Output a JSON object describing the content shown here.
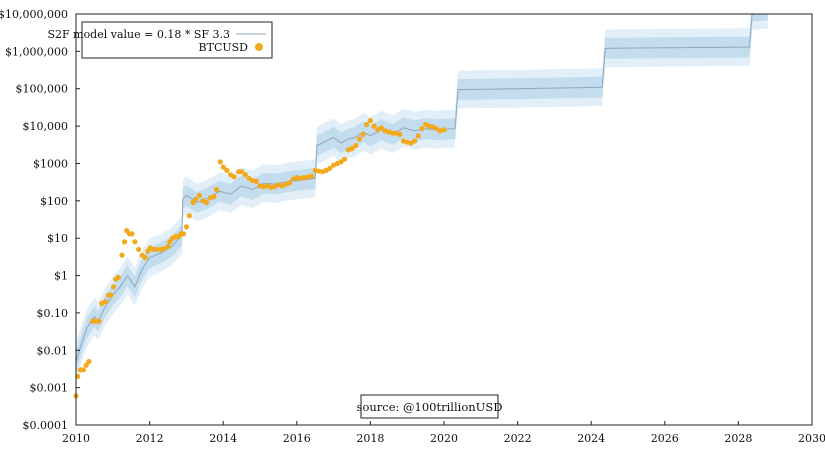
{
  "chart_data": {
    "type": "scatter",
    "y_scale": "log",
    "xlim": [
      2010,
      2030
    ],
    "ylim": [
      0.0001,
      10000000
    ],
    "x_ticks": [
      "2010",
      "2012",
      "2014",
      "2016",
      "2018",
      "2020",
      "2022",
      "2024",
      "2026",
      "2028",
      "2030"
    ],
    "y_ticks": [
      {
        "v": 10000000,
        "label": "$10,000,000"
      },
      {
        "v": 1000000,
        "label": "$1,000,000"
      },
      {
        "v": 100000,
        "label": "$100,000"
      },
      {
        "v": 10000,
        "label": "$10,000"
      },
      {
        "v": 1000,
        "label": "$1000"
      },
      {
        "v": 100,
        "label": "$100"
      },
      {
        "v": 10,
        "label": "$10"
      },
      {
        "v": 1,
        "label": "$1"
      },
      {
        "v": 0.1,
        "label": "$0.10"
      },
      {
        "v": 0.01,
        "label": "$0.01"
      },
      {
        "v": 0.001,
        "label": "$0.001"
      },
      {
        "v": 0.0001,
        "label": "$0.0001"
      }
    ],
    "grid": false,
    "legend_position": "top-left",
    "legend": {
      "model_label": "S2F model value = 0.18 * SF 3.3",
      "price_label": "BTCUSD"
    },
    "annotation": "source: @100trillionUSD",
    "colors": {
      "model_line": "#8ea8bd",
      "band_inner": "#c3dcee",
      "band_outer": "#e2eff9",
      "price_dots": "#f2a91c",
      "axis": "#222222"
    },
    "series": [
      {
        "role": "model",
        "x": [
          2010.0,
          2010.15,
          2010.3,
          2010.5,
          2010.6,
          2010.8,
          2011.0,
          2011.2,
          2011.4,
          2011.6,
          2011.8,
          2012.0,
          2012.3,
          2012.6,
          2012.88,
          2012.9,
          2013.0,
          2013.3,
          2013.6,
          2013.9,
          2014.2,
          2014.5,
          2014.8,
          2015.1,
          2015.4,
          2015.7,
          2016.0,
          2016.3,
          2016.5,
          2016.55,
          2016.8,
          2017.0,
          2017.2,
          2017.4,
          2017.6,
          2017.8,
          2018.0,
          2018.3,
          2018.6,
          2018.9,
          2019.2,
          2019.5,
          2019.8,
          2020.3,
          2020.38,
          2022.0,
          2024.3,
          2024.38,
          2026.0,
          2028.3,
          2028.38,
          2028.8
        ],
        "y": [
          0.005,
          0.015,
          0.04,
          0.08,
          0.06,
          0.15,
          0.3,
          0.5,
          1.0,
          0.5,
          1.5,
          3.0,
          4.0,
          6.0,
          12,
          110,
          140,
          90,
          120,
          180,
          150,
          250,
          200,
          300,
          280,
          320,
          350,
          380,
          400,
          3000,
          4000,
          5000,
          3500,
          4500,
          5000,
          7000,
          5500,
          8000,
          6000,
          9000,
          7500,
          8500,
          8000,
          8500,
          95000,
          100000,
          110000,
          1200000,
          1250000,
          1300000,
          12000000,
          13000000
        ]
      },
      {
        "role": "price",
        "name": "BTCUSD",
        "x": [
          2010.0,
          2010.05,
          2010.12,
          2010.2,
          2010.28,
          2010.35,
          2010.45,
          2010.5,
          2010.55,
          2010.62,
          2010.7,
          2010.8,
          2010.88,
          2010.95,
          2011.02,
          2011.08,
          2011.15,
          2011.25,
          2011.32,
          2011.38,
          2011.45,
          2011.52,
          2011.6,
          2011.7,
          2011.8,
          2011.88,
          2011.95,
          2012.02,
          2012.1,
          2012.2,
          2012.3,
          2012.4,
          2012.5,
          2012.55,
          2012.62,
          2012.7,
          2012.78,
          2012.85,
          2012.92,
          2013.0,
          2013.08,
          2013.18,
          2013.25,
          2013.35,
          2013.45,
          2013.55,
          2013.65,
          2013.75,
          2013.82,
          2013.92,
          2014.0,
          2014.1,
          2014.2,
          2014.3,
          2014.42,
          2014.5,
          2014.6,
          2014.7,
          2014.8,
          2014.9,
          2015.0,
          2015.1,
          2015.2,
          2015.3,
          2015.4,
          2015.5,
          2015.6,
          2015.7,
          2015.8,
          2015.9,
          2016.0,
          2016.1,
          2016.2,
          2016.3,
          2016.4,
          2016.5,
          2016.6,
          2016.7,
          2016.8,
          2016.9,
          2017.0,
          2017.1,
          2017.2,
          2017.3,
          2017.4,
          2017.5,
          2017.6,
          2017.7,
          2017.8,
          2017.9,
          2018.0,
          2018.1,
          2018.2,
          2018.3,
          2018.4,
          2018.5,
          2018.6,
          2018.7,
          2018.8,
          2018.9,
          2019.0,
          2019.1,
          2019.2,
          2019.3,
          2019.4,
          2019.5,
          2019.6,
          2019.7,
          2019.8,
          2019.9,
          2020.0
        ],
        "y": [
          0.0006,
          0.002,
          0.003,
          0.003,
          0.004,
          0.005,
          0.06,
          0.06,
          0.06,
          0.06,
          0.18,
          0.2,
          0.3,
          0.3,
          0.5,
          0.8,
          0.9,
          3.5,
          8.0,
          16,
          13,
          13,
          8,
          5,
          3.5,
          3.0,
          4.5,
          5.5,
          5.0,
          5.0,
          5.0,
          5.2,
          6.0,
          8.0,
          10,
          11,
          11,
          13,
          13,
          20,
          40,
          90,
          110,
          140,
          100,
          90,
          120,
          130,
          200,
          1100,
          800,
          650,
          500,
          440,
          600,
          600,
          500,
          400,
          350,
          330,
          250,
          240,
          250,
          230,
          240,
          270,
          250,
          280,
          300,
          380,
          420,
          400,
          420,
          430,
          460,
          650,
          620,
          600,
          650,
          740,
          900,
          1000,
          1100,
          1300,
          2300,
          2500,
          3000,
          4500,
          6000,
          11000,
          14000,
          10000,
          8000,
          9000,
          7500,
          7000,
          6500,
          6500,
          6000,
          4000,
          3700,
          3500,
          4000,
          5500,
          8500,
          11000,
          10000,
          9500,
          8500,
          7500,
          8000
        ]
      }
    ]
  }
}
